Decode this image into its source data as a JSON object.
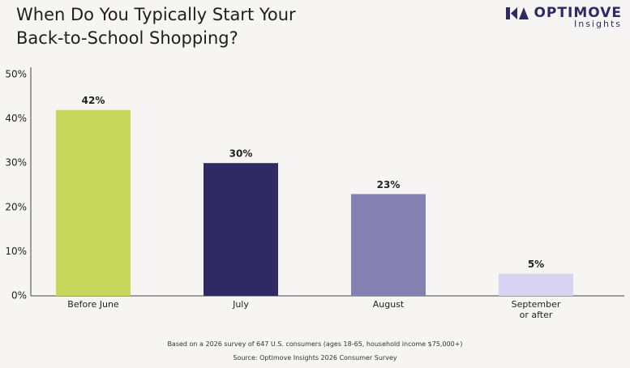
{
  "chart_data": {
    "type": "bar",
    "title": "When Do You Typically Start Your Back-to-School Shopping?",
    "logo": {
      "name": "OPTIMOVE",
      "sub": "Insights"
    },
    "categories": [
      "Before June",
      "July",
      "August",
      "September or after"
    ],
    "values": [
      42,
      30,
      23,
      5
    ],
    "value_labels": [
      "42%",
      "30%",
      "23%",
      "5%"
    ],
    "colors": [
      "#c5d65a",
      "#2f2a63",
      "#8480b0",
      "#d7d3f2"
    ],
    "ylim": [
      0,
      50
    ],
    "yticks": [
      {
        "value": 0,
        "label": "0%"
      },
      {
        "value": 10,
        "label": "10%"
      },
      {
        "value": 20,
        "label": "20%"
      },
      {
        "value": 30,
        "label": "30%"
      },
      {
        "value": 40,
        "label": "40%"
      },
      {
        "value": 50,
        "label": "50%"
      }
    ],
    "grid": false,
    "footnote": "Based on a 2026 survey of 647 U.S. consumers (ages 18-65, household income $75,000+)",
    "source": "Source: Optimove Insights 2026 Consumer Survey"
  }
}
